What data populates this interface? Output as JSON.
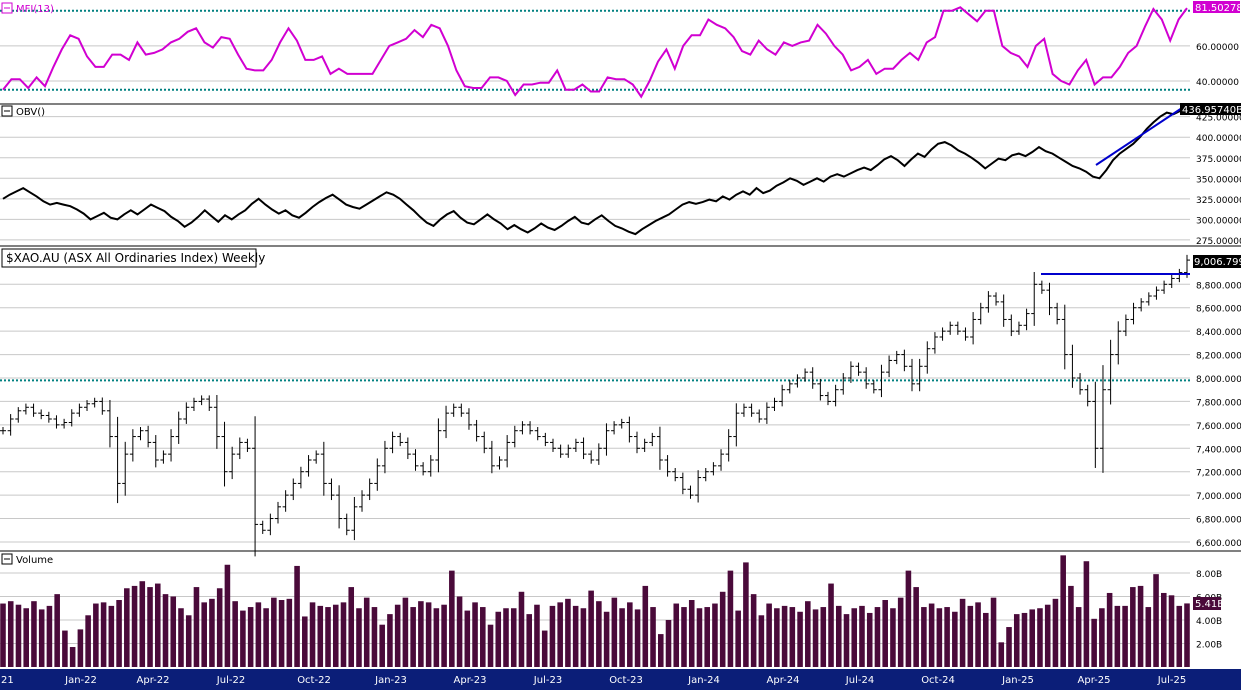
{
  "colors": {
    "mfi": "#d100d1",
    "obv": "#000000",
    "price": "#000000",
    "volume": "#4a0a3a",
    "trendline": "#0000cc",
    "dotted_level": "#008080",
    "grid": "#c8c8c8",
    "axis_bar": "#0b1e78",
    "axis_text": "#ffffff",
    "mfi_badge": "#d100d1",
    "obv_badge": "#000000",
    "price_badge": "#000000",
    "volume_badge": "#4a0a3a"
  },
  "panels": {
    "mfi": {
      "legend": "MFI(13)",
      "last_value": "81.50278",
      "ticks": [
        "60.00000",
        "40.00000"
      ]
    },
    "obv": {
      "legend": "OBV()",
      "last_value": "436.95740B",
      "ticks": [
        "425.00000B",
        "400.00000B",
        "375.00000B",
        "350.00000B",
        "325.00000B",
        "300.00000B",
        "275.00000B"
      ]
    },
    "price": {
      "legend": "$XAO.AU (ASX All Ordinaries Index) Weekly",
      "last_value": "9,006.7998",
      "ticks": [
        "8,800.0000",
        "8,600.0000",
        "8,400.0000",
        "8,200.0000",
        "8,000.0000",
        "7,800.0000",
        "7,600.0000",
        "7,400.0000",
        "7,200.0000",
        "7,000.0000",
        "6,800.0000",
        "6,600.0000"
      ]
    },
    "volume": {
      "legend": "Volume",
      "last_value": "5.41B",
      "ticks": [
        "8.00B",
        "6.00B",
        "4.00B",
        "2.00B"
      ]
    }
  },
  "x_axis": {
    "first_label": "21",
    "labels": [
      "Jan-22",
      "Apr-22",
      "Jul-22",
      "Oct-22",
      "Jan-23",
      "Apr-23",
      "Jul-23",
      "Oct-23",
      "Jan-24",
      "Apr-24",
      "Jul-24",
      "Oct-24",
      "Jan-25",
      "Apr-25",
      "Jul-25"
    ]
  },
  "chart_data": [
    {
      "type": "line",
      "title": "MFI(13)",
      "series": [
        {
          "name": "MFI(13)",
          "values": [
            35,
            41,
            41,
            36,
            42,
            37,
            48,
            58,
            66,
            64,
            54,
            48,
            48,
            55,
            55,
            52,
            62,
            55,
            56,
            58,
            62,
            64,
            68,
            70,
            62,
            59,
            65,
            64,
            55,
            47,
            46,
            46,
            52,
            62,
            70,
            63,
            52,
            52,
            54,
            44,
            47,
            44,
            44,
            44,
            44,
            52,
            60,
            62,
            64,
            69,
            65,
            72,
            70,
            60,
            46,
            37,
            36,
            36,
            42,
            42,
            40,
            32,
            38,
            38,
            39,
            39,
            46,
            35,
            35,
            38,
            34,
            34,
            42,
            41,
            41,
            38,
            31,
            40,
            51,
            58,
            47,
            60,
            66,
            66,
            75,
            72,
            70,
            65,
            57,
            55,
            63,
            58,
            55,
            62,
            60,
            62,
            63,
            72,
            67,
            60,
            55,
            46,
            48,
            52,
            44,
            47,
            47,
            52,
            56,
            52,
            62,
            65,
            80,
            80,
            82,
            78,
            74,
            80,
            80,
            60,
            56,
            54,
            48,
            60,
            64,
            44,
            40,
            38,
            46,
            52,
            38,
            42,
            42,
            48,
            56,
            60,
            71,
            81,
            75,
            63,
            75,
            81.5
          ]
        }
      ],
      "levels": [
        80,
        35
      ],
      "ylim": [
        28,
        85
      ]
    },
    {
      "type": "line",
      "title": "OBV()",
      "series": [
        {
          "name": "OBV()",
          "values": [
            325,
            330,
            334,
            338,
            333,
            328,
            322,
            318,
            320,
            318,
            316,
            312,
            307,
            300,
            304,
            308,
            302,
            300,
            306,
            311,
            306,
            312,
            318,
            314,
            310,
            303,
            298,
            291,
            296,
            303,
            311,
            304,
            297,
            305,
            300,
            306,
            311,
            319,
            325,
            318,
            312,
            307,
            311,
            305,
            302,
            308,
            315,
            321,
            326,
            330,
            324,
            318,
            315,
            313,
            318,
            323,
            328,
            333,
            330,
            325,
            318,
            311,
            303,
            296,
            292,
            300,
            306,
            310,
            302,
            296,
            294,
            300,
            306,
            300,
            295,
            288,
            293,
            288,
            284,
            289,
            295,
            290,
            287,
            292,
            298,
            303,
            296,
            294,
            300,
            305,
            298,
            292,
            289,
            285,
            282,
            288,
            293,
            298,
            302,
            306,
            312,
            318,
            321,
            319,
            321,
            324,
            322,
            328,
            324,
            330,
            334,
            330,
            338,
            332,
            335,
            341,
            345,
            350,
            347,
            342,
            346,
            350,
            346,
            352,
            355,
            352,
            356,
            360,
            363,
            360,
            366,
            373,
            377,
            372,
            365,
            373,
            380,
            376,
            385,
            392,
            394,
            390,
            384,
            380,
            375,
            369,
            362,
            368,
            374,
            372,
            378,
            380,
            377,
            382,
            388,
            383,
            380,
            375,
            370,
            365,
            362,
            358,
            352,
            350,
            360,
            372,
            380,
            386,
            392,
            400,
            410,
            418,
            425,
            430,
            428,
            432,
            436.96
          ]
        }
      ],
      "ylim": [
        270,
        438
      ]
    },
    {
      "type": "bar",
      "title": "$XAO.AU (ASX All Ordinaries Index) Weekly",
      "series": [
        {
          "name": "$XAO.AU (ASX All Ordinaries Index) Weekly",
          "values": [
            7550,
            7650,
            7720,
            7750,
            7700,
            7680,
            7650,
            7600,
            7620,
            7700,
            7750,
            7780,
            7800,
            7720,
            7500,
            7100,
            7350,
            7500,
            7550,
            7450,
            7300,
            7350,
            7500,
            7650,
            7750,
            7800,
            7820,
            7750,
            7500,
            7200,
            7350,
            7450,
            7400,
            6750,
            6700,
            6800,
            6900,
            7000,
            7100,
            7200,
            7300,
            7350,
            7100,
            7000,
            6800,
            6700,
            6900,
            7000,
            7100,
            7250,
            7400,
            7500,
            7450,
            7350,
            7250,
            7200,
            7300,
            7550,
            7700,
            7750,
            7700,
            7600,
            7500,
            7400,
            7250,
            7300,
            7450,
            7550,
            7600,
            7550,
            7500,
            7450,
            7400,
            7350,
            7400,
            7450,
            7350,
            7300,
            7400,
            7550,
            7600,
            7620,
            7500,
            7400,
            7450,
            7500,
            7300,
            7200,
            7150,
            7050,
            7000,
            7150,
            7200,
            7250,
            7350,
            7500,
            7700,
            7750,
            7700,
            7650,
            7750,
            7800,
            7900,
            7950,
            8000,
            8050,
            7950,
            7850,
            7800,
            7900,
            8000,
            8100,
            8050,
            7950,
            7900,
            8050,
            8150,
            8200,
            8100,
            7950,
            8100,
            8250,
            8350,
            8400,
            8450,
            8400,
            8350,
            8500,
            8600,
            8700,
            8650,
            8500,
            8400,
            8450,
            8550,
            8800,
            8750,
            8600,
            8500,
            8200,
            8000,
            7900,
            7800,
            7400,
            7900,
            8200,
            8400,
            8500,
            8600,
            8650,
            8700,
            8750,
            8800,
            8850,
            8900,
            9006.8
          ]
        }
      ],
      "levels": [
        8900,
        7980
      ],
      "ylim": [
        6540,
        9110
      ]
    },
    {
      "type": "bar",
      "title": "Volume",
      "series": [
        {
          "name": "Volume",
          "values": [
            5.4,
            5.6,
            5.3,
            5.0,
            5.6,
            4.9,
            5.2,
            6.2,
            3.1,
            1.7,
            3.2,
            4.4,
            5.4,
            5.5,
            5.2,
            5.7,
            6.7,
            6.9,
            7.3,
            6.8,
            7.1,
            6.2,
            6.0,
            5.0,
            4.4,
            6.8,
            5.5,
            5.8,
            6.7,
            8.7,
            5.6,
            4.8,
            5.1,
            5.5,
            5.0,
            5.9,
            5.7,
            5.8,
            8.6,
            4.3,
            5.5,
            5.2,
            5.1,
            5.3,
            5.5,
            6.8,
            5.0,
            5.9,
            5.1,
            3.6,
            4.5,
            5.3,
            5.9,
            5.1,
            5.6,
            5.5,
            5.0,
            5.3,
            8.2,
            6.0,
            4.8,
            5.5,
            5.1,
            3.6,
            4.7,
            5.0,
            5.0,
            6.4,
            4.5,
            5.3,
            3.1,
            5.2,
            5.5,
            5.8,
            5.2,
            5.0,
            6.5,
            5.6,
            4.7,
            5.9,
            5.0,
            5.5,
            4.9,
            6.9,
            5.1,
            2.8,
            4.0,
            5.4,
            5.1,
            5.7,
            5.0,
            5.1,
            5.4,
            6.4,
            8.2,
            4.8,
            8.9,
            6.2,
            4.4,
            5.4,
            5.0,
            5.2,
            5.1,
            4.7,
            5.6,
            4.9,
            5.1,
            7.1,
            5.2,
            4.5,
            5.0,
            5.2,
            4.6,
            5.1,
            5.7,
            5.0,
            5.9,
            8.2,
            6.8,
            5.1,
            5.4,
            5.0,
            5.1,
            4.7,
            5.8,
            5.2,
            5.5,
            4.6,
            5.9,
            2.1,
            3.4,
            4.5,
            4.6,
            4.9,
            5.0,
            5.3,
            5.8,
            9.5,
            6.9,
            5.1,
            9.0,
            4.1,
            5.0,
            6.3,
            5.2,
            5.2,
            6.8,
            6.9,
            5.1,
            7.9,
            6.3,
            6.1,
            5.2,
            5.41
          ]
        }
      ],
      "ylim": [
        0,
        9.7
      ]
    }
  ]
}
